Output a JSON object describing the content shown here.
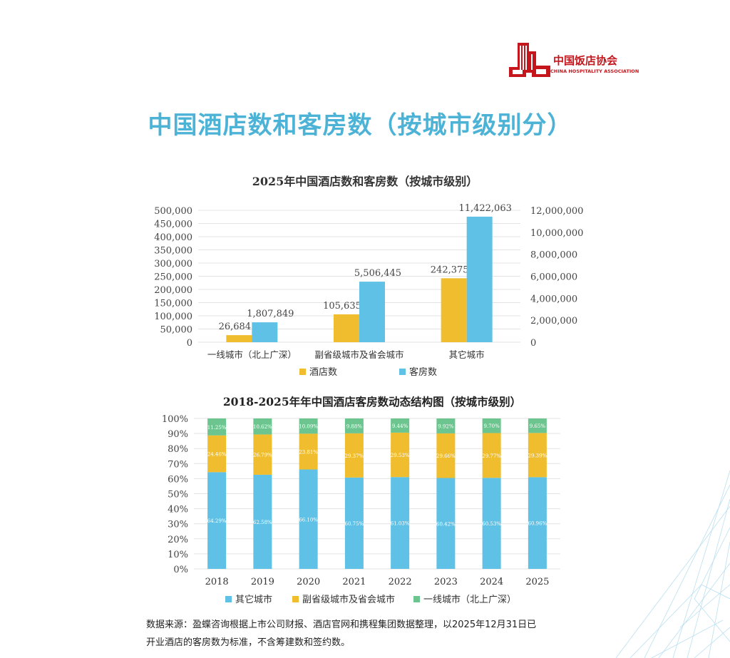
{
  "header": {
    "logo_cn": "中国饭店协会",
    "logo_en": "CHINA HOSPITALITY ASSOCIATION",
    "page_title": "中国酒店数和客房数（按城市级别分）"
  },
  "colors": {
    "hotels": "#f0bd2e",
    "rooms": "#5ec1e5",
    "tier1": "#6cc58e",
    "sub_provincial": "#f0bd2e",
    "other": "#5ec1e5",
    "title": "#4cb3d6",
    "logo": "#c4161c"
  },
  "chart_data": [
    {
      "type": "bar",
      "title": "2025年中国酒店数和客房数（按城市级别）",
      "categories": [
        "一线城市（北上广深）",
        "副省级城市及省会城市",
        "其它城市"
      ],
      "series": [
        {
          "name": "酒店数",
          "axis": "left",
          "values": [
            26684,
            105635,
            242375
          ],
          "labels": [
            "26,684",
            "105,635",
            "242,375"
          ]
        },
        {
          "name": "客房数",
          "axis": "right",
          "values": [
            1807849,
            5506445,
            11422063
          ],
          "labels": [
            "1,807,849",
            "5,506,445",
            "11,422,063"
          ]
        }
      ],
      "ylim_left": [
        0,
        500000
      ],
      "ylim_right": [
        0,
        12000000
      ],
      "yticks_left": [
        "0",
        "50,000",
        "100,000",
        "150,000",
        "200,000",
        "250,000",
        "300,000",
        "350,000",
        "400,000",
        "450,000",
        "500,000"
      ],
      "yticks_right": [
        "0",
        "2,000,000",
        "4,000,000",
        "6,000,000",
        "8,000,000",
        "10,000,000",
        "12,000,000"
      ],
      "legend_position": "bottom",
      "grid": true
    },
    {
      "type": "stacked_bar",
      "title": "2018-2025年年中国酒店客房数动态结构图（按城市级别）",
      "categories": [
        "2018",
        "2019",
        "2020",
        "2021",
        "2022",
        "2023",
        "2024",
        "2025"
      ],
      "series": [
        {
          "name": "其它城市",
          "values": [
            64.29,
            62.58,
            66.1,
            60.75,
            61.03,
            60.42,
            60.53,
            60.96
          ],
          "labels": [
            "64.29%",
            "62.58%",
            "66.10%",
            "60.75%",
            "61.03%",
            "60.42%",
            "60.53%",
            "60.96%"
          ]
        },
        {
          "name": "副省级城市及省会城市",
          "values": [
            24.46,
            26.79,
            23.81,
            29.37,
            29.53,
            29.66,
            29.77,
            29.39
          ],
          "labels": [
            "24.46%",
            "26.79%",
            "23.81%",
            "29.37%",
            "29.53%",
            "29.66%",
            "29.77%",
            "29.39%"
          ]
        },
        {
          "name": "一线城市（北上广深）",
          "values": [
            11.25,
            10.62,
            10.09,
            9.88,
            9.44,
            9.92,
            9.7,
            9.65
          ],
          "labels": [
            "11.25%",
            "10.62%",
            "10.09%",
            "9.88%",
            "9.44%",
            "9.92%",
            "9.70%",
            "9.65%"
          ]
        }
      ],
      "ylim": [
        0,
        100
      ],
      "yticks": [
        "0%",
        "10%",
        "20%",
        "30%",
        "40%",
        "50%",
        "60%",
        "70%",
        "80%",
        "90%",
        "100%"
      ],
      "legend_position": "bottom",
      "grid": true
    }
  ],
  "footer": {
    "source_line1": "数据来源：盈蝶咨询根据上市公司财报、酒店官网和携程集团数据整理，以2025年12月31日已",
    "source_line2": "开业酒店的客房数为标准，不含筹建数和签约数。"
  }
}
